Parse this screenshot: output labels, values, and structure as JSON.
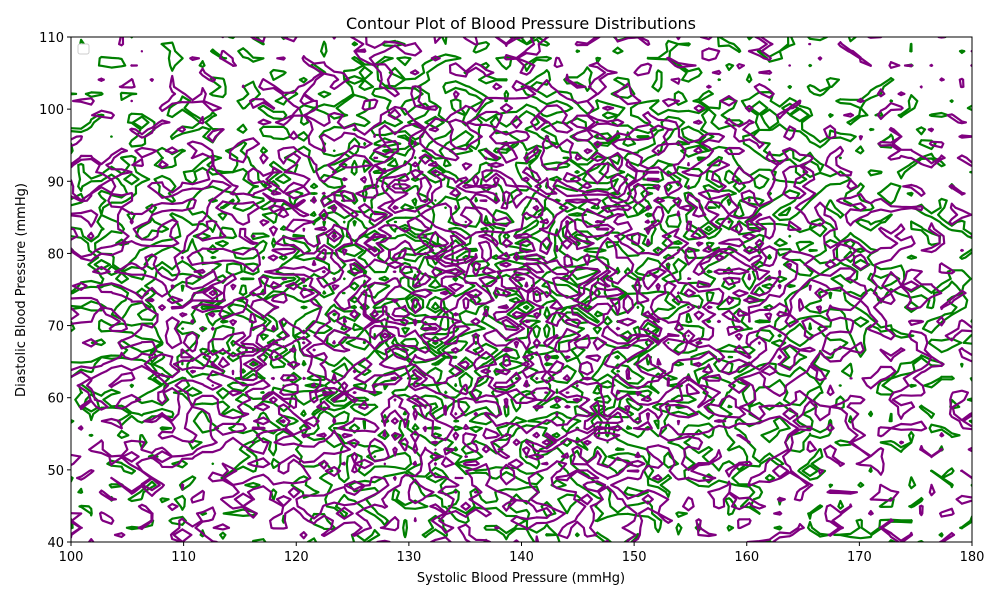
{
  "chart_data": {
    "type": "contour",
    "title": "Contour Plot of Blood Pressure Distributions",
    "xlabel": "Systolic Blood Pressure (mmHg)",
    "ylabel": "Diastolic Blood Pressure (mmHg)",
    "xlim": [
      100,
      180
    ],
    "ylim": [
      40,
      110
    ],
    "xticks": [
      100,
      110,
      120,
      130,
      140,
      150,
      160,
      170,
      180
    ],
    "yticks": [
      40,
      50,
      60,
      70,
      80,
      90,
      100,
      110
    ],
    "grid": false,
    "legend": {
      "placement": "top-left",
      "entries": []
    },
    "series": [
      {
        "color": "#008000",
        "center": [
          138,
          75
        ],
        "spread": [
          20,
          17
        ]
      },
      {
        "color": "#800080",
        "center": [
          138,
          72
        ],
        "spread": [
          20,
          17
        ]
      }
    ]
  }
}
